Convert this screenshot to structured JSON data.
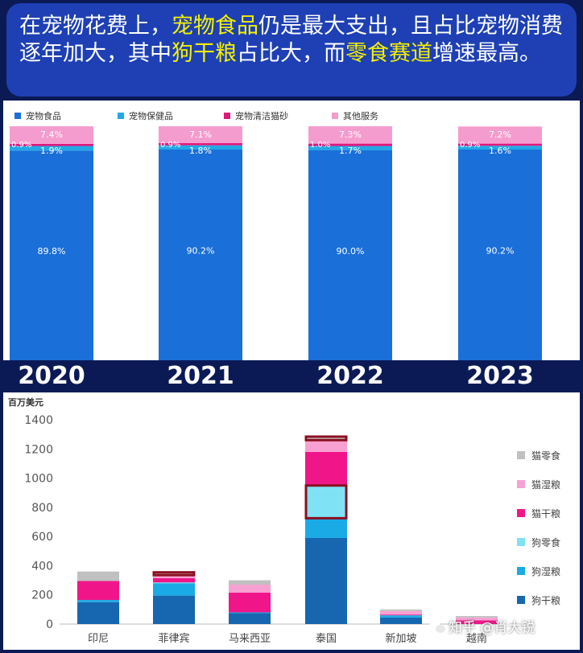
{
  "headline": {
    "parts": [
      {
        "text": "在宠物花费上，",
        "highlight": false
      },
      {
        "text": "宠物食品",
        "highlight": true
      },
      {
        "text": "仍是最大支出，且占比宠物消费逐年加大，其中",
        "highlight": false
      },
      {
        "text": "狗干粮",
        "highlight": true
      },
      {
        "text": "占比大，而",
        "highlight": false
      },
      {
        "text": "零食赛道",
        "highlight": true
      },
      {
        "text": "增速最高。",
        "highlight": false
      }
    ],
    "highlight_color": "#f4f000"
  },
  "chart_data": [
    {
      "type": "bar",
      "stacked": true,
      "title": "",
      "legend_position": "top",
      "categories": [
        "2020",
        "2021",
        "2022",
        "2023"
      ],
      "ylim": [
        0,
        100
      ],
      "series": [
        {
          "name": "宠物食品",
          "values": [
            89.8,
            90.2,
            90.0,
            90.2
          ],
          "labels": [
            "89.8%",
            "90.2%",
            "90.0%",
            "90.2%"
          ],
          "color": "#1a6fd9"
        },
        {
          "name": "宠物保健品",
          "values": [
            1.9,
            1.8,
            1.7,
            1.6
          ],
          "labels": [
            "1.9%",
            "1.8%",
            "1.7%",
            "1.6%"
          ],
          "color": "#22a8e6"
        },
        {
          "name": "宠物清洁猫砂",
          "values": [
            0.9,
            0.9,
            1.0,
            0.9
          ],
          "labels": [
            "0.9%",
            "0.9%",
            "1.0%",
            "0.9%"
          ],
          "color": "#e0187c"
        },
        {
          "name": "其他服务",
          "values": [
            7.4,
            7.1,
            7.3,
            7.2
          ],
          "labels": [
            "7.4%",
            "7.1%",
            "7.3%",
            "7.2%"
          ],
          "color": "#f59ccf"
        }
      ]
    },
    {
      "type": "bar",
      "stacked": true,
      "ylabel": "百万美元",
      "ylim": [
        0,
        1400
      ],
      "yticks": [
        0,
        200,
        400,
        600,
        800,
        1000,
        1200,
        1400
      ],
      "legend_position": "right",
      "categories": [
        "印尼",
        "菲律宾",
        "马来西亚",
        "泰国",
        "新加坡",
        "越南"
      ],
      "series": [
        {
          "name": "狗干粮",
          "values": [
            150,
            195,
            75,
            590,
            45,
            0
          ],
          "color": "#1666b0"
        },
        {
          "name": "狗湿粮",
          "values": [
            15,
            85,
            5,
            130,
            15,
            0
          ],
          "color": "#1aaae6"
        },
        {
          "name": "狗零食",
          "values": [
            0,
            5,
            0,
            235,
            0,
            0
          ],
          "color": "#7fe3f5"
        },
        {
          "name": "猫干粮",
          "values": [
            130,
            30,
            135,
            225,
            5,
            25
          ],
          "color": "#f0168a"
        },
        {
          "name": "猫湿粮",
          "values": [
            0,
            15,
            55,
            75,
            25,
            20
          ],
          "color": "#f7a1d2"
        },
        {
          "name": "猫零食",
          "values": [
            65,
            30,
            30,
            35,
            10,
            10
          ],
          "color": "#c0c0c0"
        }
      ],
      "annotations": [
        "泰国狗零食 highlighted",
        "泰国猫零食 highlighted",
        "菲律宾猫零食 highlighted"
      ]
    }
  ],
  "watermark": "知乎 @肖大锐"
}
